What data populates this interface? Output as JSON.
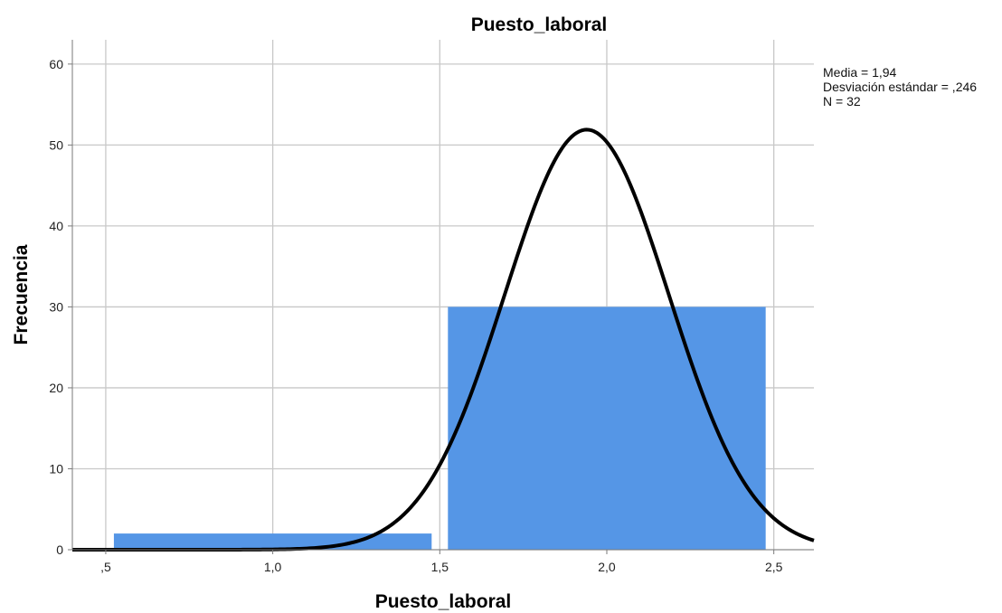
{
  "chart_data": {
    "type": "bar",
    "subtype": "histogram",
    "title": "Puesto_laboral",
    "xlabel": "Puesto_laboral",
    "ylabel": "Frecuencia",
    "xlim": [
      0.4,
      2.62
    ],
    "ylim": [
      0,
      63
    ],
    "x_ticks": [
      {
        "value": 0.5,
        "label": ",5"
      },
      {
        "value": 1.0,
        "label": "1,0"
      },
      {
        "value": 1.5,
        "label": "1,5"
      },
      {
        "value": 2.0,
        "label": "2,0"
      },
      {
        "value": 2.5,
        "label": "2,5"
      }
    ],
    "y_ticks": [
      {
        "value": 0,
        "label": "0"
      },
      {
        "value": 10,
        "label": "10"
      },
      {
        "value": 20,
        "label": "20"
      },
      {
        "value": 30,
        "label": "30"
      },
      {
        "value": 40,
        "label": "40"
      },
      {
        "value": 50,
        "label": "50"
      },
      {
        "value": 60,
        "label": "60"
      }
    ],
    "bins": [
      {
        "x_start": 0.5,
        "x_end": 1.5,
        "value": 2
      },
      {
        "x_start": 1.5,
        "x_end": 2.5,
        "value": 30
      }
    ],
    "bar_color": "#5596e6",
    "curve_color": "#000000",
    "normal_curve": {
      "mean": 1.94,
      "std": 0.246,
      "n": 32,
      "bin_width": 1.0
    },
    "stats_lines": [
      "Media = 1,94",
      "Desviación estándar = ,246",
      "N = 32"
    ],
    "grid": true
  }
}
